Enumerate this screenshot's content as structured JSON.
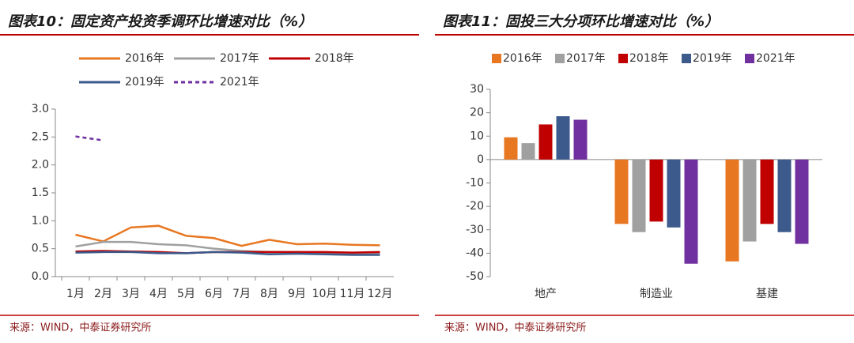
{
  "chart_data": [
    {
      "type": "line",
      "title": "图表10：固定资产投资季调环比增速对比（%）",
      "source": "来源：WIND，中泰证券研究所",
      "categories": [
        "1月",
        "2月",
        "3月",
        "4月",
        "5月",
        "6月",
        "7月",
        "8月",
        "9月",
        "10月",
        "11月",
        "12月"
      ],
      "ylim": [
        0,
        3
      ],
      "yticks": [
        {
          "value": 0,
          "label": "0.0"
        },
        {
          "value": 0.5,
          "label": "0.5"
        },
        {
          "value": 1,
          "label": "1.0"
        },
        {
          "value": 1.5,
          "label": "1.5"
        },
        {
          "value": 2,
          "label": "2.0"
        },
        {
          "value": 2.5,
          "label": "2.5"
        },
        {
          "value": 3,
          "label": "3.0"
        }
      ],
      "series": [
        {
          "name": "2016年",
          "color": "#e87722",
          "values": [
            0.75,
            0.63,
            0.88,
            0.91,
            0.73,
            0.69,
            0.55,
            0.66,
            0.58,
            0.59,
            0.57,
            0.56
          ]
        },
        {
          "name": "2017年",
          "color": "#a0a0a0",
          "values": [
            0.54,
            0.62,
            0.62,
            0.58,
            0.56,
            0.5,
            0.46,
            0.44,
            0.44,
            0.42,
            0.41,
            0.42
          ]
        },
        {
          "name": "2018年",
          "color": "#c00000",
          "values": [
            0.45,
            0.46,
            0.45,
            0.44,
            0.42,
            0.44,
            0.44,
            0.44,
            0.44,
            0.44,
            0.43,
            0.44
          ]
        },
        {
          "name": "2019年",
          "color": "#3c5a8c",
          "values": [
            0.43,
            0.44,
            0.44,
            0.42,
            0.42,
            0.44,
            0.43,
            0.4,
            0.41,
            0.4,
            0.39,
            0.39
          ]
        },
        {
          "name": "2021年",
          "color": "#7030a0",
          "dashed": true,
          "values": [
            2.51,
            2.44,
            null,
            null,
            null,
            null,
            null,
            null,
            null,
            null,
            null,
            null
          ]
        }
      ]
    },
    {
      "type": "bar",
      "title": "图表11：固投三大分项环比增速对比（%）",
      "source": "来源：WIND，中泰证券研究所",
      "categories": [
        "地产",
        "制造业",
        "基建"
      ],
      "ylim": [
        -50,
        30
      ],
      "yticks": [
        -50,
        -40,
        -30,
        -20,
        -10,
        0,
        10,
        20,
        30
      ],
      "series": [
        {
          "name": "2016年",
          "color": "#e87722",
          "values": [
            9.5,
            -27.5,
            -43.5
          ]
        },
        {
          "name": "2017年",
          "color": "#a0a0a0",
          "values": [
            7,
            -31,
            -35
          ]
        },
        {
          "name": "2018年",
          "color": "#c00000",
          "values": [
            15,
            -26.5,
            -27.5
          ]
        },
        {
          "name": "2019年",
          "color": "#3c5a8c",
          "values": [
            18.5,
            -29,
            -31
          ]
        },
        {
          "name": "2021年",
          "color": "#7030a0",
          "values": [
            17,
            -44.5,
            -36
          ]
        }
      ]
    }
  ]
}
